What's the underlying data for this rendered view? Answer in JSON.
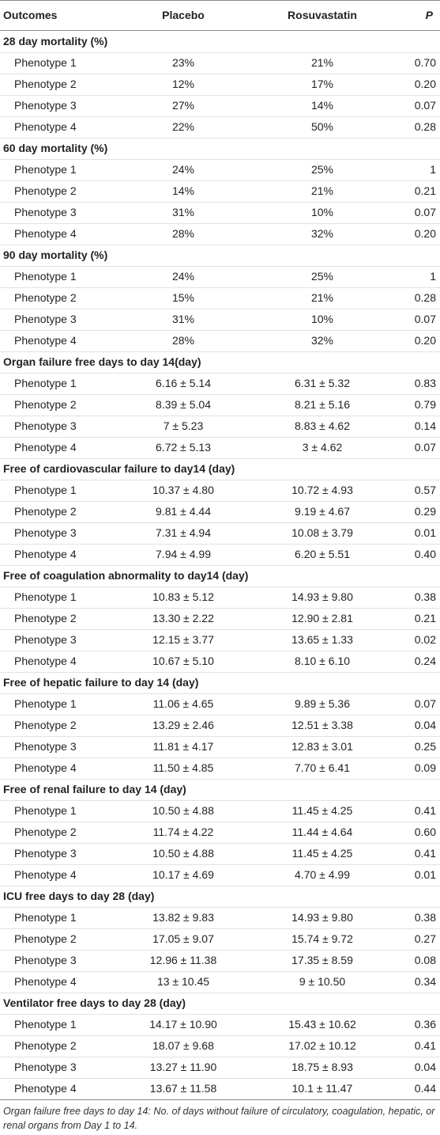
{
  "table": {
    "columns": [
      "Outcomes",
      "Placebo",
      "Rosuvastatin",
      "P"
    ],
    "sections": [
      {
        "title": "28 day mortality (%)",
        "rows": [
          [
            "Phenotype 1",
            "23%",
            "21%",
            "0.70"
          ],
          [
            "Phenotype 2",
            "12%",
            "17%",
            "0.20"
          ],
          [
            "Phenotype 3",
            "27%",
            "14%",
            "0.07"
          ],
          [
            "Phenotype 4",
            "22%",
            "50%",
            "0.28"
          ]
        ]
      },
      {
        "title": "60 day mortality (%)",
        "rows": [
          [
            "Phenotype 1",
            "24%",
            "25%",
            "1"
          ],
          [
            "Phenotype 2",
            "14%",
            "21%",
            "0.21"
          ],
          [
            "Phenotype 3",
            "31%",
            "10%",
            "0.07"
          ],
          [
            "Phenotype 4",
            "28%",
            "32%",
            "0.20"
          ]
        ]
      },
      {
        "title": "90 day mortality (%)",
        "rows": [
          [
            "Phenotype 1",
            "24%",
            "25%",
            "1"
          ],
          [
            "Phenotype 2",
            "15%",
            "21%",
            "0.28"
          ],
          [
            "Phenotype 3",
            "31%",
            "10%",
            "0.07"
          ],
          [
            "Phenotype 4",
            "28%",
            "32%",
            "0.20"
          ]
        ]
      },
      {
        "title": "Organ failure free days to day 14(day)",
        "rows": [
          [
            "Phenotype 1",
            "6.16 ± 5.14",
            "6.31 ± 5.32",
            "0.83"
          ],
          [
            "Phenotype 2",
            "8.39 ± 5.04",
            "8.21 ± 5.16",
            "0.79"
          ],
          [
            "Phenotype 3",
            "7 ± 5.23",
            "8.83 ± 4.62",
            "0.14"
          ],
          [
            "Phenotype 4",
            "6.72 ± 5.13",
            "3 ± 4.62",
            "0.07"
          ]
        ]
      },
      {
        "title": "Free of cardiovascular failure to day14 (day)",
        "rows": [
          [
            "Phenotype 1",
            "10.37 ± 4.80",
            "10.72 ± 4.93",
            "0.57"
          ],
          [
            "Phenotype 2",
            "9.81 ± 4.44",
            "9.19 ± 4.67",
            "0.29"
          ],
          [
            "Phenotype 3",
            "7.31 ± 4.94",
            "10.08 ± 3.79",
            "0.01"
          ],
          [
            "Phenotype 4",
            "7.94 ± 4.99",
            "6.20 ± 5.51",
            "0.40"
          ]
        ]
      },
      {
        "title": "Free of coagulation abnormality to day14 (day)",
        "rows": [
          [
            "Phenotype 1",
            "10.83 ± 5.12",
            "14.93 ± 9.80",
            "0.38"
          ],
          [
            "Phenotype 2",
            "13.30 ± 2.22",
            "12.90 ± 2.81",
            "0.21"
          ],
          [
            "Phenotype 3",
            "12.15 ± 3.77",
            "13.65 ± 1.33",
            "0.02"
          ],
          [
            "Phenotype 4",
            "10.67 ± 5.10",
            "8.10 ± 6.10",
            "0.24"
          ]
        ]
      },
      {
        "title": "Free of hepatic failure to day 14 (day)",
        "rows": [
          [
            "Phenotype 1",
            "11.06 ± 4.65",
            "9.89 ± 5.36",
            "0.07"
          ],
          [
            "Phenotype 2",
            "13.29 ± 2.46",
            "12.51 ± 3.38",
            "0.04"
          ],
          [
            "Phenotype 3",
            "11.81 ± 4.17",
            "12.83 ± 3.01",
            "0.25"
          ],
          [
            "Phenotype 4",
            "11.50 ± 4.85",
            "7.70 ± 6.41",
            "0.09"
          ]
        ]
      },
      {
        "title": "Free of renal failure to day 14 (day)",
        "rows": [
          [
            "Phenotype 1",
            "10.50 ± 4.88",
            "11.45 ± 4.25",
            "0.41"
          ],
          [
            "Phenotype 2",
            "11.74 ± 4.22",
            "11.44 ± 4.64",
            "0.60"
          ],
          [
            "Phenotype 3",
            "10.50 ± 4.88",
            "11.45 ± 4.25",
            "0.41"
          ],
          [
            "Phenotype 4",
            "10.17 ± 4.69",
            "4.70 ± 4.99",
            "0.01"
          ]
        ]
      },
      {
        "title": "ICU free days to day 28 (day)",
        "rows": [
          [
            "Phenotype 1",
            "13.82 ± 9.83",
            "14.93 ± 9.80",
            "0.38"
          ],
          [
            "Phenotype 2",
            "17.05 ± 9.07",
            "15.74 ± 9.72",
            "0.27"
          ],
          [
            "Phenotype 3",
            "12.96 ± 11.38",
            "17.35 ± 8.59",
            "0.08"
          ],
          [
            "Phenotype 4",
            "13 ± 10.45",
            "9 ± 10.50",
            "0.34"
          ]
        ]
      },
      {
        "title": "Ventilator free days to day 28 (day)",
        "rows": [
          [
            "Phenotype 1",
            "14.17 ± 10.90",
            "15.43 ± 10.62",
            "0.36"
          ],
          [
            "Phenotype 2",
            "18.07 ± 9.68",
            "17.02 ± 10.12",
            "0.41"
          ],
          [
            "Phenotype 3",
            "13.27 ± 11.90",
            "18.75 ± 8.93",
            "0.04"
          ],
          [
            "Phenotype 4",
            "13.67 ± 11.58",
            "10.1 ± 11.47",
            "0.44"
          ]
        ]
      }
    ]
  },
  "footnote": "Organ failure free days to day 14: No. of days without failure of circulatory, coagulation, hepatic, or renal organs from Day 1 to 14."
}
